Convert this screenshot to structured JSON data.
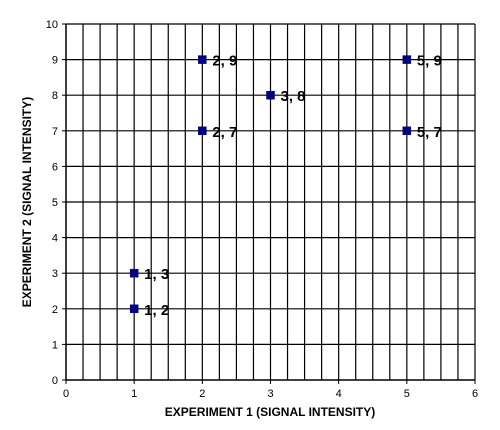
{
  "chart_data": {
    "type": "scatter",
    "xlabel": "EXPERIMENT 1 (SIGNAL INTENSITY)",
    "ylabel": "EXPERIMENT 2 (SIGNAL INTENSITY)",
    "xlim": [
      0,
      6
    ],
    "ylim": [
      0,
      10
    ],
    "x_ticks": [
      "0",
      "1",
      "2",
      "3",
      "4",
      "5",
      "6"
    ],
    "y_ticks": [
      "0",
      "1",
      "2",
      "3",
      "4",
      "5",
      "6",
      "7",
      "8",
      "9",
      "10"
    ],
    "grid": true,
    "marker_color": "#000080",
    "points": [
      {
        "x": 1,
        "y": 2,
        "label": "1, 2"
      },
      {
        "x": 1,
        "y": 3,
        "label": "1, 3"
      },
      {
        "x": 2,
        "y": 7,
        "label": "2, 7"
      },
      {
        "x": 2,
        "y": 9,
        "label": "2, 9"
      },
      {
        "x": 3,
        "y": 8,
        "label": "3, 8"
      },
      {
        "x": 5,
        "y": 7,
        "label": "5, 7"
      },
      {
        "x": 5,
        "y": 9,
        "label": "5, 9"
      }
    ]
  }
}
